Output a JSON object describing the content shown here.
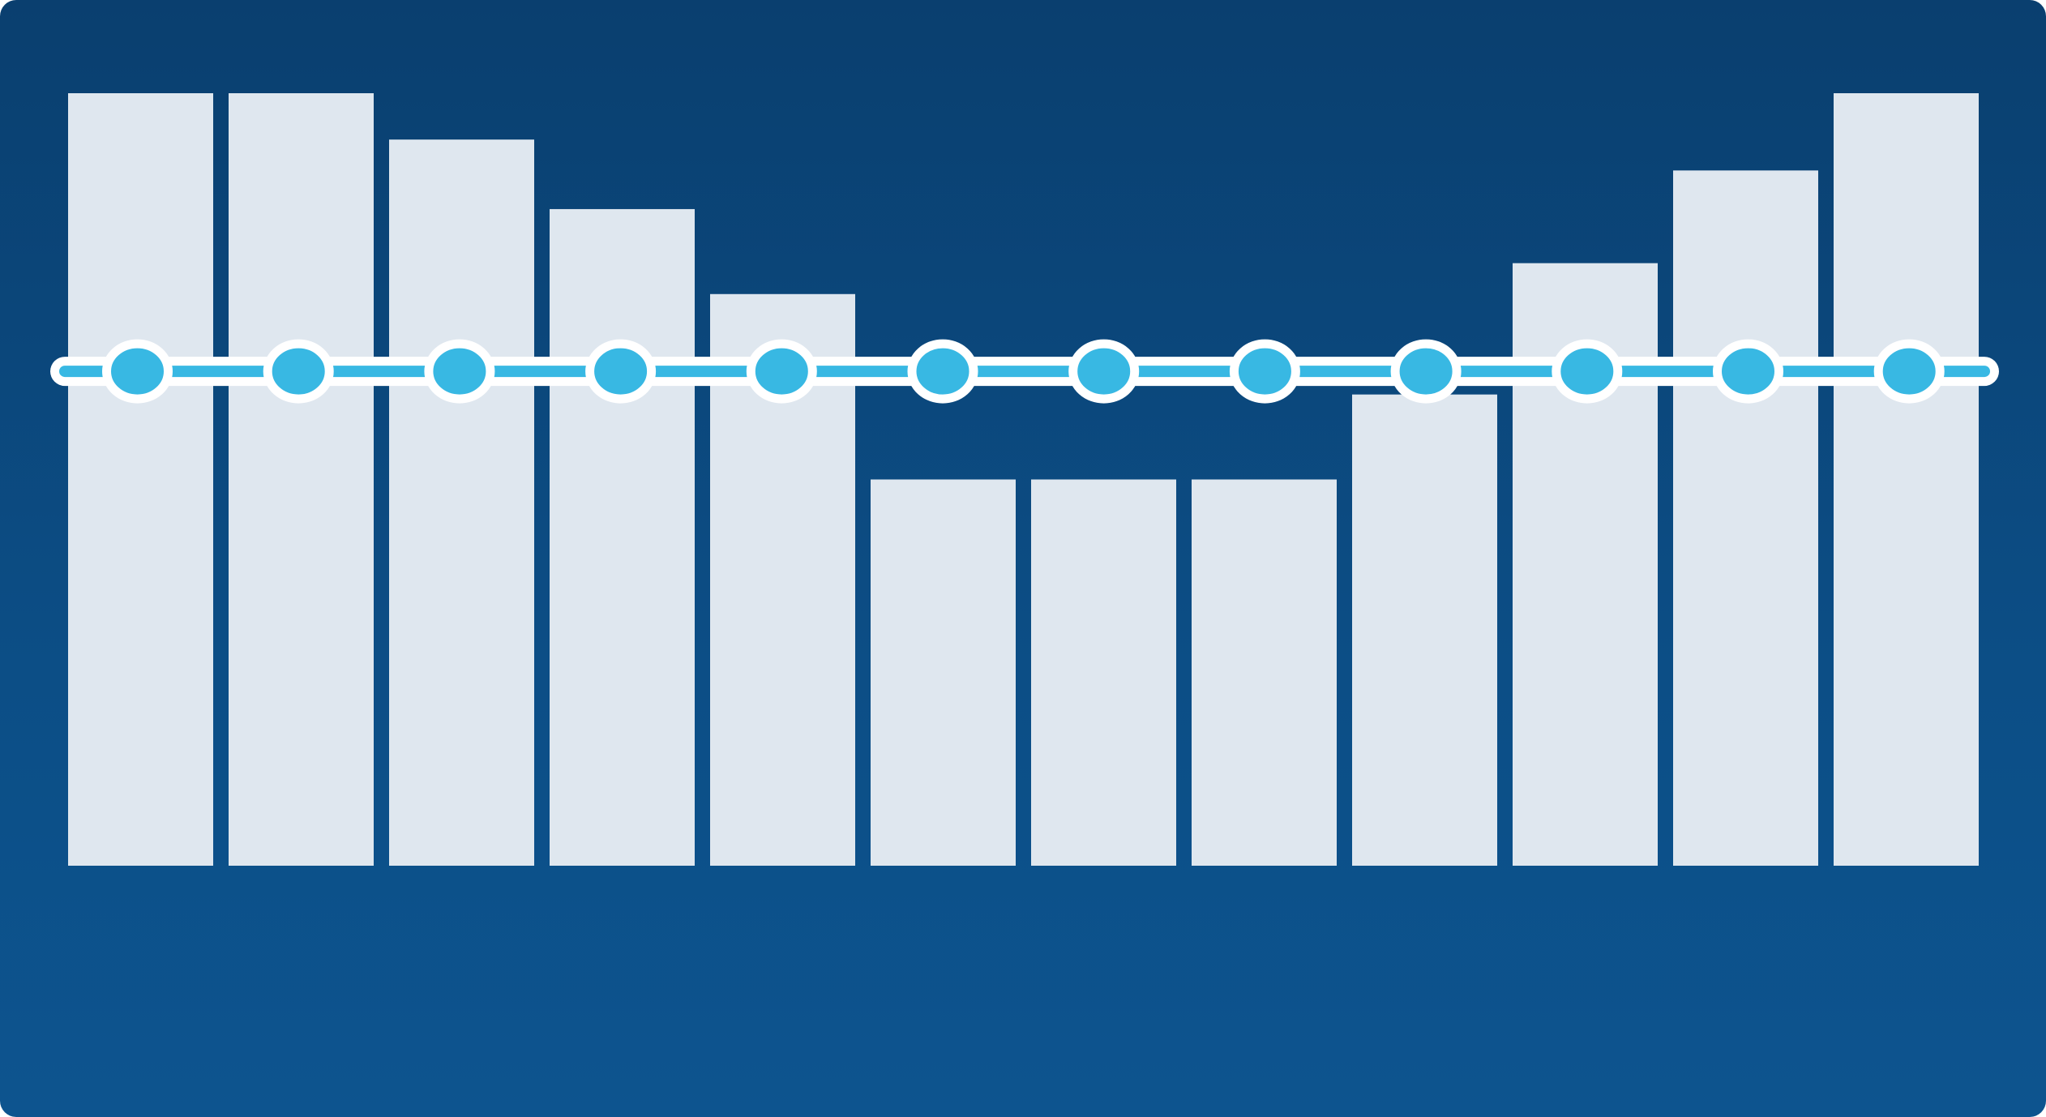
{
  "chart_data": {
    "type": "bar",
    "title": "",
    "xlabel": "",
    "ylabel": "",
    "ylim": [
      0,
      100
    ],
    "grid": false,
    "legend": "none",
    "values": [
      100,
      100,
      94,
      85,
      74,
      50,
      50,
      50,
      61,
      78,
      90,
      100
    ],
    "overlay": {
      "type": "line-with-markers",
      "level": 64,
      "points": 12
    }
  },
  "colors": {
    "background_top": "#0a3f6f",
    "background_bottom": "#0d548f",
    "bar": "#dfe7ef",
    "line": "#38b8e3",
    "outline": "#ffffff"
  }
}
